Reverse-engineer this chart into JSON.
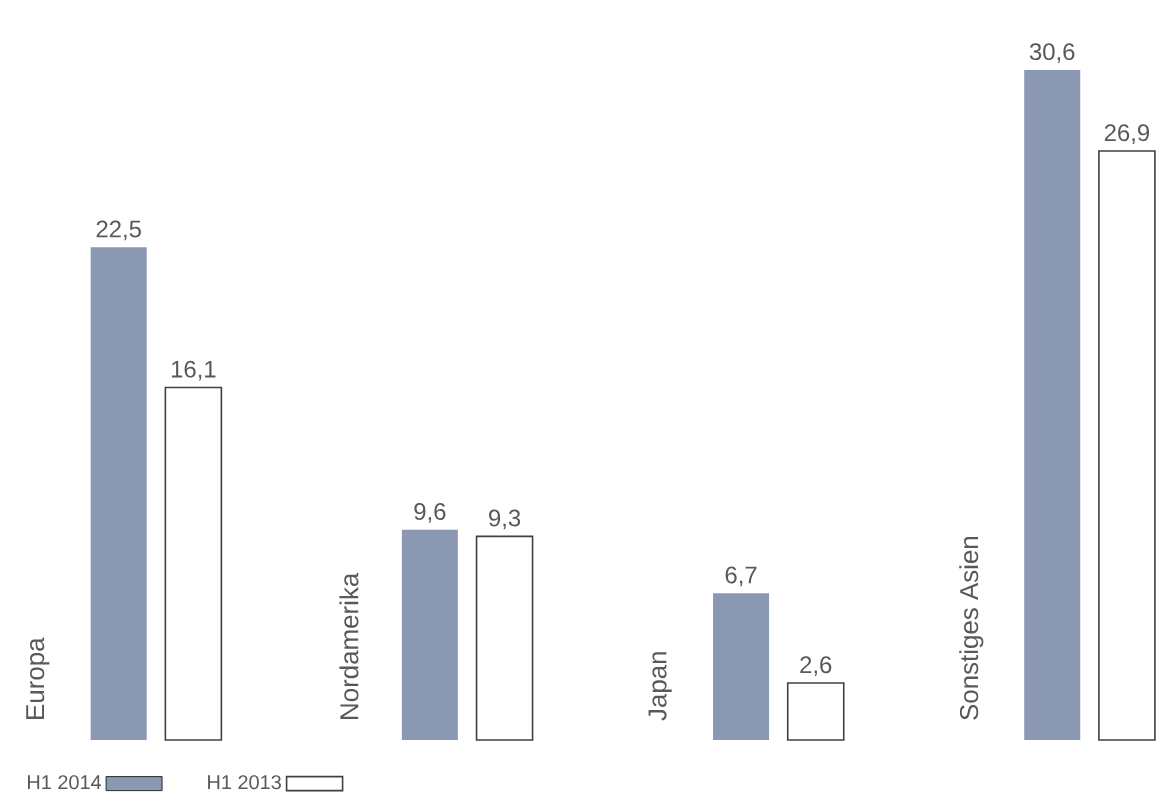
{
  "chart_data": {
    "type": "bar",
    "categories": [
      "Europa",
      "Nordamerika",
      "Japan",
      "Sonstiges Asien"
    ],
    "series": [
      {
        "name": "H1 2014",
        "color": "#8a98b3",
        "values": [
          22.5,
          9.6,
          6.7,
          30.6
        ],
        "value_labels": [
          "22,5",
          "9,6",
          "6,7",
          "30,6"
        ]
      },
      {
        "name": "H1 2013",
        "color": "#404040",
        "values": [
          16.1,
          9.3,
          2.6,
          26.9
        ],
        "value_labels": [
          "16,1",
          "9,3",
          "2,6",
          "26,9"
        ]
      }
    ],
    "legend": "bottom left"
  }
}
